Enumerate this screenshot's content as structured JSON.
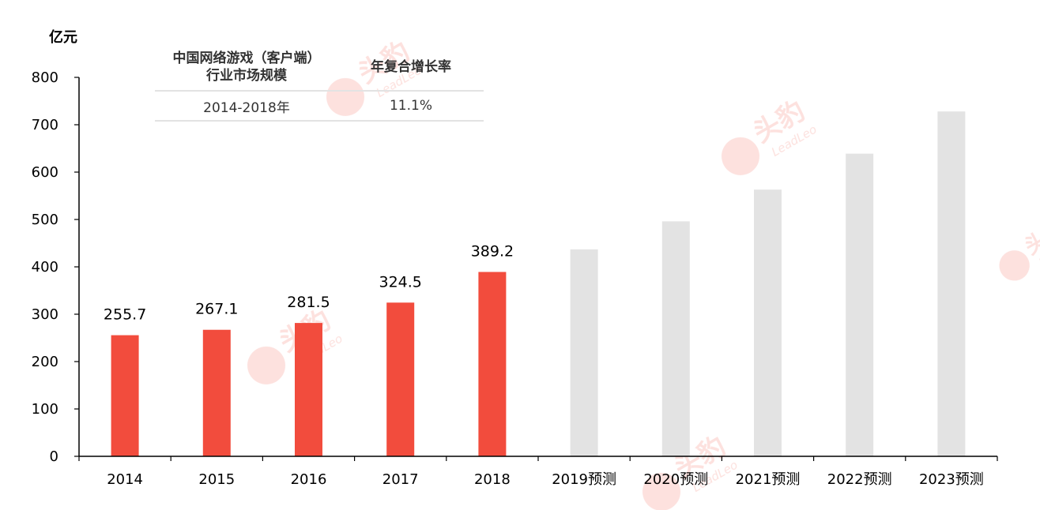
{
  "chart_data": {
    "type": "bar",
    "unit": "亿元",
    "categories": [
      "2014",
      "2015",
      "2016",
      "2017",
      "2018",
      "2019预测",
      "2020预测",
      "2021预测",
      "2022预测",
      "2023预测"
    ],
    "values": [
      255.7,
      267.1,
      281.5,
      324.5,
      389.2,
      437,
      496,
      563,
      639,
      728
    ],
    "labels": [
      "255.7",
      "267.1",
      "281.5",
      "324.5",
      "389.2",
      "",
      "",
      "",
      "",
      ""
    ],
    "forecast": [
      false,
      false,
      false,
      false,
      false,
      true,
      true,
      true,
      true,
      true
    ],
    "ylim": [
      0,
      800
    ],
    "yticks": [
      0,
      100,
      200,
      300,
      400,
      500,
      600,
      700,
      800
    ],
    "colors": {
      "actual": "#f24c3d",
      "forecast": "#e3e3e3",
      "axis": "#000000"
    },
    "grid": false
  },
  "table": {
    "header_col1_line1": "中国网络游戏（客户端）",
    "header_col1_line2": "行业市场规模",
    "header_col2": "年复合增长率",
    "row_period": "2014-2018年",
    "row_cagr": "11.1%"
  },
  "watermark": {
    "brand": "头豹",
    "sub": "LeadLeo"
  }
}
